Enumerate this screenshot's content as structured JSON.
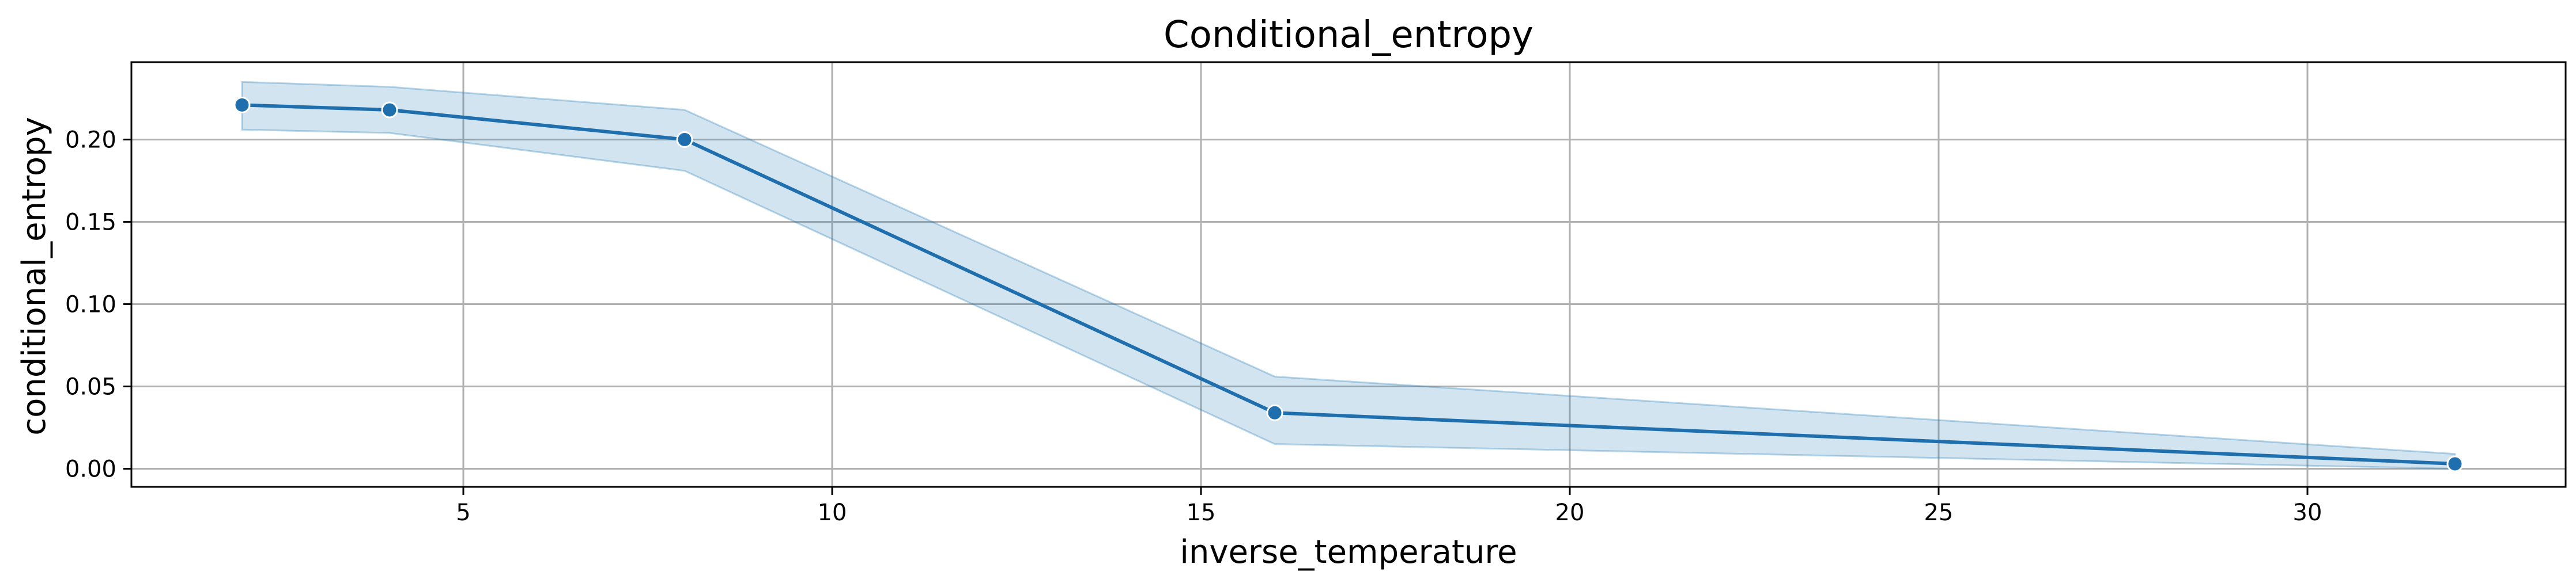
{
  "chart_data": {
    "type": "line",
    "title": "Conditional_entropy",
    "xlabel": "inverse_temperature",
    "ylabel": "conditional_entropy",
    "xlim": [
      0.5,
      33.5
    ],
    "ylim": [
      -0.011,
      0.247
    ],
    "x_ticks": [
      5,
      10,
      15,
      20,
      25,
      30
    ],
    "x_tick_labels": [
      "5",
      "10",
      "15",
      "20",
      "25",
      "30"
    ],
    "y_ticks": [
      0.0,
      0.05,
      0.1,
      0.15,
      0.2
    ],
    "y_tick_labels": [
      "0.00",
      "0.05",
      "0.10",
      "0.15",
      "0.20"
    ],
    "grid": true,
    "series": [
      {
        "x": [
          2,
          4,
          8,
          16,
          32
        ],
        "y": [
          0.221,
          0.218,
          0.2,
          0.034,
          0.003
        ],
        "ci_lower": [
          0.206,
          0.204,
          0.181,
          0.015,
          0.0
        ],
        "ci_upper": [
          0.235,
          0.232,
          0.218,
          0.056,
          0.009
        ]
      }
    ],
    "colors": {
      "line": "#1f6fae",
      "band": "#1f77b4",
      "band_opacity": 0.2,
      "marker": "#1f6fae"
    }
  }
}
